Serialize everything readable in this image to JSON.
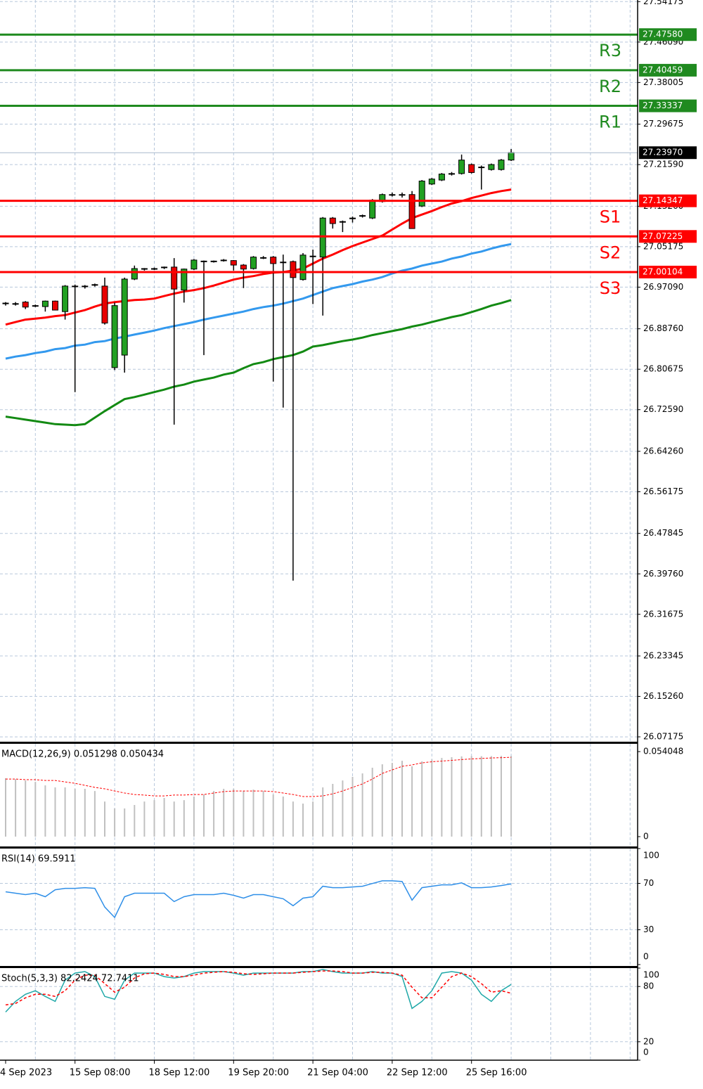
{
  "chart_data": [
    {
      "type": "candlestick",
      "categories": [
        "4 Sep 2023",
        null,
        null,
        null,
        null,
        null,
        null,
        "15 Sep 08:00",
        null,
        null,
        null,
        null,
        null,
        null,
        null,
        "18 Sep 12:00",
        null,
        null,
        null,
        null,
        null,
        null,
        null,
        "19 Sep 20:00",
        null,
        null,
        null,
        null,
        null,
        null,
        null,
        "21 Sep 04:00",
        null,
        null,
        null,
        null,
        null,
        null,
        null,
        "22 Sep 12:00",
        null,
        null,
        null,
        null,
        null,
        null,
        null,
        "25 Sep 16:00",
        null,
        null,
        null,
        null
      ],
      "open": [
        26.938,
        26.937,
        26.941,
        26.934,
        26.932,
        26.943,
        26.922,
        26.972,
        26.972,
        26.975,
        26.973,
        26.81,
        26.835,
        26.987,
        27.007,
        27.008,
        27.01,
        27.011,
        26.965,
        27.007,
        27.022,
        27.022,
        27.025,
        27.024,
        27.015,
        27.008,
        27.029,
        27.031,
        27.021,
        27.022,
        26.986,
        27.032,
        27.031,
        27.109,
        27.101,
        27.108,
        27.113,
        27.109,
        27.142,
        27.155,
        27.156,
        27.156,
        27.133,
        27.177,
        27.185,
        27.197,
        27.198,
        27.216,
        27.21,
        27.206,
        27.206,
        27.225
      ],
      "high": [
        26.941,
        26.941,
        26.943,
        26.936,
        26.944,
        26.944,
        26.975,
        26.976,
        26.975,
        26.978,
        26.99,
        26.94,
        26.99,
        27.014,
        27.009,
        27.01,
        27.012,
        27.029,
        27.008,
        27.027,
        27.024,
        27.024,
        27.027,
        27.025,
        27.017,
        27.033,
        27.033,
        27.033,
        27.036,
        27.024,
        27.039,
        27.046,
        27.111,
        27.111,
        27.104,
        27.112,
        27.116,
        27.147,
        27.158,
        27.16,
        27.16,
        27.163,
        27.185,
        27.189,
        27.199,
        27.201,
        27.236,
        27.218,
        27.214,
        27.218,
        27.227,
        27.247
      ],
      "low": [
        26.934,
        26.934,
        26.927,
        26.931,
        26.922,
        26.925,
        26.906,
        26.761,
        26.968,
        26.972,
        26.896,
        26.805,
        26.8,
        26.985,
        27.004,
        27.005,
        27.007,
        26.696,
        26.94,
        27.005,
        26.835,
        27.02,
        27.022,
        27.004,
        26.969,
        27.006,
        27.027,
        26.782,
        26.73,
        26.384,
        26.984,
        26.937,
        26.914,
        27.088,
        27.081,
        27.1,
        27.11,
        27.107,
        27.14,
        27.152,
        27.15,
        27.088,
        27.131,
        27.175,
        27.183,
        27.194,
        27.196,
        27.198,
        27.166,
        27.204,
        27.204,
        27.223
      ],
      "close": [
        26.939,
        26.938,
        26.931,
        26.934,
        26.943,
        26.925,
        26.973,
        26.973,
        26.973,
        26.976,
        26.899,
        26.934,
        26.987,
        27.008,
        27.008,
        27.008,
        27.011,
        26.967,
        27.007,
        27.025,
        27.023,
        27.023,
        27.025,
        27.015,
        27.007,
        27.031,
        27.03,
        27.018,
        27.02,
        26.99,
        27.035,
        27.033,
        27.109,
        27.098,
        27.102,
        27.109,
        27.114,
        27.145,
        27.156,
        27.156,
        27.156,
        27.088,
        27.183,
        27.187,
        27.197,
        27.198,
        27.225,
        27.2,
        27.211,
        27.216,
        27.225,
        27.24
      ],
      "up_color": "#22a022",
      "down_color": "#e80000",
      "series": [
        {
          "color": "#ff0000",
          "values": [
            26.896,
            26.901,
            26.906,
            26.908,
            26.91,
            26.913,
            26.915,
            26.92,
            26.925,
            26.932,
            26.938,
            26.941,
            26.943,
            26.945,
            26.946,
            26.948,
            26.953,
            26.958,
            26.962,
            26.965,
            26.969,
            26.974,
            26.98,
            26.986,
            26.99,
            26.993,
            26.997,
            27.0,
            27.001,
            27.004,
            27.008,
            27.018,
            27.028,
            27.036,
            27.045,
            27.053,
            27.06,
            27.067,
            27.074,
            27.086,
            27.098,
            27.109,
            27.116,
            27.123,
            27.131,
            27.138,
            27.143,
            27.149,
            27.154,
            27.159,
            27.163,
            27.166
          ]
        },
        {
          "color": "#3399ee",
          "values": [
            26.828,
            26.832,
            26.835,
            26.839,
            26.842,
            26.847,
            26.849,
            26.854,
            26.856,
            26.861,
            26.863,
            26.868,
            26.872,
            26.876,
            26.88,
            26.884,
            26.889,
            26.893,
            26.897,
            26.901,
            26.906,
            26.91,
            26.914,
            26.918,
            26.922,
            26.927,
            26.931,
            26.934,
            26.938,
            26.943,
            26.948,
            26.955,
            26.962,
            26.969,
            26.973,
            26.977,
            26.982,
            26.986,
            26.991,
            26.998,
            27.004,
            27.008,
            27.014,
            27.018,
            27.022,
            27.028,
            27.032,
            27.038,
            27.042,
            27.048,
            27.053,
            27.057
          ]
        },
        {
          "color": "#138a13",
          "values": [
            26.712,
            26.709,
            26.706,
            26.703,
            26.7,
            26.697,
            26.696,
            26.695,
            26.697,
            26.71,
            26.723,
            26.735,
            26.747,
            26.751,
            26.756,
            26.761,
            26.766,
            26.772,
            26.776,
            26.782,
            26.786,
            26.79,
            26.796,
            26.8,
            26.809,
            26.817,
            26.821,
            26.827,
            26.831,
            26.835,
            26.842,
            26.852,
            26.855,
            26.859,
            26.863,
            26.866,
            26.87,
            26.875,
            26.879,
            26.883,
            26.887,
            26.892,
            26.896,
            26.901,
            26.906,
            26.911,
            26.915,
            26.921,
            26.927,
            26.934,
            26.939,
            26.945
          ]
        }
      ],
      "levels": [
        {
          "name": "R3",
          "value": 27.4758,
          "value_label": "27.47580",
          "color": "#1f8a1f"
        },
        {
          "name": "R2",
          "value": 27.40459,
          "value_label": "27.40459",
          "color": "#1f8a1f"
        },
        {
          "name": "R1",
          "value": 27.33337,
          "value_label": "27.33337",
          "color": "#1f8a1f"
        },
        {
          "name": "S1",
          "value": 27.14347,
          "value_label": "27.14347",
          "color": "#ff0000"
        },
        {
          "name": "S2",
          "value": 27.07225,
          "value_label": "27.07225",
          "color": "#ff0000"
        },
        {
          "name": "S3",
          "value": 27.00104,
          "value_label": "27.00104",
          "color": "#ff0000"
        }
      ],
      "last_price": {
        "value": 27.2397,
        "label": "27.23970"
      },
      "ylim": [
        26.062,
        27.545
      ],
      "yticks": [
        27.54175,
        {
          "value": 27.4609,
          "label": "27.46090"
        },
        27.38005,
        27.29675,
        {
          "value": 27.2159,
          "label": "27.21590"
        },
        {
          "value": 27.1326,
          "label": "27.13260"
        },
        27.05175,
        {
          "value": 26.9709,
          "label": "26.97090"
        },
        {
          "value": 26.8876,
          "label": "26.88760"
        },
        26.80675,
        {
          "value": 26.7259,
          "label": "26.72590"
        },
        {
          "value": 26.6426,
          "label": "26.64260"
        },
        26.56175,
        26.47845,
        {
          "value": 26.3976,
          "label": "26.39760"
        },
        26.31675,
        26.23345,
        {
          "value": 26.1526,
          "label": "26.15260"
        },
        26.07175
      ],
      "grid": true
    },
    {
      "type": "macd",
      "title": "MACD(12,26,9) 0.051298 0.050434",
      "values": [
        0.0371,
        0.0366,
        0.0357,
        0.0348,
        0.0326,
        0.0313,
        0.0313,
        0.0304,
        0.0304,
        0.029,
        0.0223,
        0.0179,
        0.0179,
        0.0201,
        0.0223,
        0.0232,
        0.0246,
        0.0223,
        0.0232,
        0.0255,
        0.0268,
        0.029,
        0.0304,
        0.0304,
        0.029,
        0.0299,
        0.029,
        0.0268,
        0.0255,
        0.0223,
        0.021,
        0.0223,
        0.0313,
        0.0335,
        0.0357,
        0.038,
        0.0402,
        0.0438,
        0.046,
        0.0469,
        0.0482,
        0.0447,
        0.0478,
        0.049,
        0.05,
        0.0505,
        0.051,
        0.0512,
        0.0511,
        0.0512,
        0.0513,
        0.0513
      ],
      "signal": [
        0.0366,
        0.0366,
        0.0362,
        0.0362,
        0.0357,
        0.0357,
        0.0348,
        0.0339,
        0.0326,
        0.0313,
        0.0304,
        0.029,
        0.0277,
        0.0268,
        0.0264,
        0.0259,
        0.0259,
        0.0264,
        0.0264,
        0.0268,
        0.0268,
        0.0277,
        0.0286,
        0.029,
        0.029,
        0.029,
        0.029,
        0.0286,
        0.0277,
        0.0268,
        0.0255,
        0.0255,
        0.0259,
        0.0272,
        0.029,
        0.0313,
        0.0335,
        0.0366,
        0.0402,
        0.0424,
        0.0447,
        0.0456,
        0.0469,
        0.0476,
        0.048,
        0.0485,
        0.049,
        0.0494,
        0.0497,
        0.05,
        0.0502,
        0.0504
      ],
      "color": "#c0c0c0",
      "signal_color": "#ff0000",
      "ylim": [
        -0.0058,
        0.059
      ],
      "yticks": [
        0,
        0.054048
      ]
    },
    {
      "type": "line",
      "title": "RSI(14) 69.5911",
      "values": [
        62.7,
        61.5,
        60.3,
        61.5,
        58.5,
        64.5,
        65.7,
        65.7,
        66.3,
        65.7,
        49.6,
        40.6,
        58.5,
        61.5,
        61.5,
        61.5,
        61.5,
        54.3,
        58.5,
        60.3,
        60.3,
        60.3,
        61.5,
        59.7,
        57.3,
        60.3,
        60.3,
        58.5,
        56.7,
        50.7,
        57.3,
        58.5,
        67.5,
        66.3,
        66.3,
        66.9,
        67.5,
        69.9,
        72.2,
        72.2,
        71.6,
        55.5,
        66.3,
        67.5,
        68.7,
        68.7,
        70.4,
        66.3,
        66.3,
        66.9,
        68.1,
        69.6
      ],
      "color": "#2f8fe8",
      "ylim": [
        0,
        100
      ],
      "yticks": [
        0,
        30,
        70,
        100
      ],
      "grid_ticks": [
        30,
        70
      ]
    },
    {
      "type": "stoch",
      "title": "Stoch(5,3,3) 82.2424 72.7411",
      "series": [
        {
          "color": "#1fa8a8",
          "values": [
            52.3,
            63.8,
            71.5,
            75.4,
            69.2,
            63.8,
            86.9,
            94.6,
            96.2,
            90.8,
            69.2,
            66.2,
            86.9,
            94.6,
            94.6,
            94.6,
            90.8,
            89.2,
            90.8,
            94.6,
            96.2,
            96.2,
            96.2,
            94.6,
            92.3,
            94.6,
            94.6,
            94.6,
            94.6,
            94.6,
            96.2,
            96.2,
            98.5,
            96.2,
            94.6,
            94.6,
            94.6,
            96.2,
            94.6,
            94.6,
            90.8,
            56.2,
            63.8,
            75.4,
            94.6,
            96.2,
            94.6,
            86.9,
            71.5,
            63.8,
            75.4,
            82.2
          ]
        },
        {
          "color": "#ff0000",
          "dashed": true,
          "values": [
            60.0,
            61.5,
            67.7,
            71.5,
            71.5,
            69.2,
            75.4,
            86.9,
            92.3,
            92.3,
            83.1,
            73.8,
            79.2,
            89.2,
            93.8,
            94.6,
            93.1,
            90.8,
            90.8,
            92.3,
            94.6,
            95.4,
            96.2,
            95.4,
            93.8,
            93.1,
            93.8,
            94.6,
            94.6,
            94.6,
            95.4,
            96.2,
            96.9,
            96.9,
            96.2,
            94.6,
            94.6,
            95.4,
            95.4,
            94.6,
            92.3,
            79.2,
            67.7,
            67.7,
            79.2,
            90.8,
            94.6,
            90.8,
            83.1,
            73.8,
            75.4,
            72.7
          ]
        }
      ],
      "ylim": [
        0,
        100
      ],
      "yticks": [
        0,
        20,
        80,
        100
      ],
      "grid_ticks": [
        20,
        80
      ]
    }
  ]
}
